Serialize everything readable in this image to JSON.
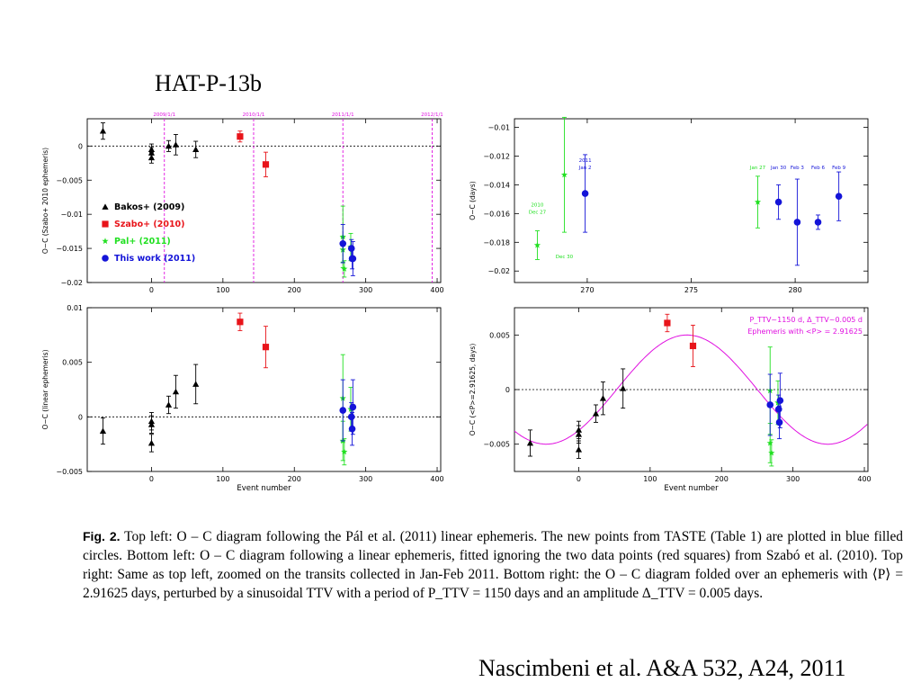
{
  "slide": {
    "title": "HAT-P-13b",
    "credit": "Nascimbeni et al. A&A 532, A24, 2011",
    "caption": {
      "label": "Fig. 2.",
      "text": " Top left: O – C diagram following the Pál et al. (2011) linear ephemeris. The new points from TASTE (Table 1) are plotted in blue filled circles. Bottom left: O – C diagram following a linear ephemeris, fitted ignoring the two data points (red squares) from Szabó et al. (2010). Top right: Same as top left, zoomed on the transits collected in Jan-Feb 2011. Bottom right: the O – C diagram folded over an ephemeris with ⟨P⟩ = 2.91625 days, perturbed by a sinusoidal TTV with a period of P_TTV = 1150 days and an amplitude Δ_TTV = 0.005 days."
    }
  },
  "colors": {
    "bakos": "#000000",
    "szabo": "#e8141a",
    "pal": "#22e022",
    "thiswork": "#1414d8",
    "date_lines": "#e010e0",
    "fit": "#e010e0"
  },
  "chart_data": [
    {
      "id": "top-left",
      "type": "scatter",
      "xlim": [
        -90,
        405
      ],
      "ylim": [
        -0.02,
        0.004
      ],
      "xticks": [
        0,
        100,
        200,
        300,
        400
      ],
      "yticks": [
        0,
        -0.005,
        -0.01,
        -0.015,
        -0.02
      ],
      "ytick_labels": [
        "0",
        "−0.005",
        "−0.01",
        "−0.015",
        "−0.02"
      ],
      "xlabel": "",
      "ylabel": "O−C (Szabo+ 2010 ephemeris)",
      "zero_line": true,
      "date_markers": [
        {
          "x": 18,
          "label": "2009/1/1"
        },
        {
          "x": 143,
          "label": "2010/1/1"
        },
        {
          "x": 268,
          "label": "2011/1/1"
        },
        {
          "x": 393,
          "label": "2012/1/1"
        }
      ],
      "legend": [
        {
          "label": "Bakos+ (2009)",
          "marker": "triangle",
          "color": "#000000"
        },
        {
          "label": "Szabo+ (2010)",
          "marker": "square",
          "color": "#e8141a"
        },
        {
          "label": "Pal+ (2011)",
          "marker": "star",
          "color": "#22e022"
        },
        {
          "label": "This work (2011)",
          "marker": "circle",
          "color": "#1414d8"
        }
      ],
      "series": [
        {
          "name": "Bakos+ (2009)",
          "marker": "triangle",
          "color": "#000000",
          "points": [
            [
              -68,
              0.0022,
              0.0012
            ],
            [
              0,
              -0.0005,
              0.0008
            ],
            [
              0,
              -0.001,
              0.0008
            ],
            [
              0,
              -0.0017,
              0.0008
            ],
            [
              24,
              0.0,
              0.0008
            ],
            [
              34,
              0.0002,
              0.0015
            ],
            [
              62,
              -0.0005,
              0.0012
            ]
          ]
        },
        {
          "name": "Szabo+ (2010)",
          "marker": "square",
          "color": "#e8141a",
          "points": [
            [
              124,
              0.0014,
              0.0008
            ],
            [
              160,
              -0.0027,
              0.0018
            ]
          ]
        },
        {
          "name": "Pal+ (2011)",
          "marker": "star",
          "color": "#22e022",
          "points": [
            [
              268,
              -0.0133,
              0.0045
            ],
            [
              268,
              -0.0152,
              0.0018
            ],
            [
              270,
              -0.018,
              0.0012
            ],
            [
              279,
              -0.0148,
              0.002
            ]
          ]
        },
        {
          "name": "This work (2011)",
          "marker": "circle",
          "color": "#1414d8",
          "points": [
            [
              268,
              -0.0143,
              0.0028
            ],
            [
              280,
              -0.015,
              0.0013
            ],
            [
              281,
              -0.0165,
              0.0015
            ],
            [
              282,
              -0.0165,
              0.0025
            ]
          ]
        }
      ]
    },
    {
      "id": "top-right",
      "type": "scatter",
      "xlim": [
        266.5,
        283.5
      ],
      "ylim": [
        -0.0208,
        -0.0094
      ],
      "xticks": [
        270,
        275,
        280
      ],
      "yticks": [
        -0.01,
        -0.012,
        -0.014,
        -0.016,
        -0.018,
        -0.02
      ],
      "ytick_labels": [
        "−0.01",
        "−0.012",
        "−0.014",
        "−0.016",
        "−0.018",
        "−0.02"
      ],
      "xlabel": "",
      "ylabel": "O−C (days)",
      "series": [
        {
          "name": "Pal+ (2011)",
          "marker": "star",
          "color": "#22e022",
          "points": [
            [
              267.6,
              -0.0182,
              0.001
            ],
            [
              268.9,
              -0.0133,
              0.004
            ],
            [
              278.2,
              -0.0152,
              0.0018
            ]
          ]
        },
        {
          "name": "This work (2011)",
          "marker": "circle",
          "color": "#1414d8",
          "points": [
            [
              269.9,
              -0.0146,
              0.0027
            ],
            [
              279.2,
              -0.0152,
              0.0012
            ],
            [
              280.1,
              -0.0166,
              0.003
            ],
            [
              281.1,
              -0.0166,
              0.0005
            ],
            [
              282.1,
              -0.0148,
              0.0017
            ]
          ]
        }
      ],
      "annotations": [
        {
          "text": "2010",
          "x": 267.6,
          "y": -0.0155,
          "color": "#22e022"
        },
        {
          "text": "Dec 27",
          "x": 267.6,
          "y": -0.016,
          "color": "#22e022"
        },
        {
          "text": "Dec 30",
          "x": 268.9,
          "y": -0.0191,
          "color": "#22e022"
        },
        {
          "text": "2011",
          "x": 269.9,
          "y": -0.0124,
          "color": "#1414d8"
        },
        {
          "text": "Jan 2",
          "x": 269.9,
          "y": -0.0129,
          "color": "#1414d8"
        },
        {
          "text": "Jan 27",
          "x": 278.2,
          "y": -0.0129,
          "color": "#22e022"
        },
        {
          "text": "Jan 30",
          "x": 279.2,
          "y": -0.0129,
          "color": "#1414d8"
        },
        {
          "text": "Feb 3",
          "x": 280.1,
          "y": -0.0129,
          "color": "#1414d8"
        },
        {
          "text": "Feb 6",
          "x": 281.1,
          "y": -0.0129,
          "color": "#1414d8"
        },
        {
          "text": "Feb 9",
          "x": 282.1,
          "y": -0.0129,
          "color": "#1414d8"
        }
      ]
    },
    {
      "id": "bottom-left",
      "type": "scatter",
      "xlim": [
        -90,
        405
      ],
      "ylim": [
        -0.005,
        0.01
      ],
      "xticks": [
        0,
        100,
        200,
        300,
        400
      ],
      "yticks": [
        0.01,
        0.005,
        0,
        -0.005
      ],
      "ytick_labels": [
        "0.01",
        "0.005",
        "0",
        "−0.005"
      ],
      "xlabel": "Event number",
      "ylabel": "O−C (linear ephemeris)",
      "zero_line": true,
      "series": [
        {
          "name": "Bakos+ (2009)",
          "marker": "triangle",
          "color": "#000000",
          "points": [
            [
              -68,
              -0.0013,
              0.0012
            ],
            [
              0,
              -0.0004,
              0.0008
            ],
            [
              0,
              -0.0007,
              0.0008
            ],
            [
              0,
              -0.0024,
              0.0008
            ],
            [
              24,
              0.0011,
              0.0008
            ],
            [
              34,
              0.0023,
              0.0015
            ],
            [
              62,
              0.003,
              0.0018
            ]
          ]
        },
        {
          "name": "Szabo+ (2010)",
          "marker": "square",
          "color": "#e8141a",
          "points": [
            [
              124,
              0.0087,
              0.0008
            ],
            [
              160,
              0.0064,
              0.0019
            ]
          ]
        },
        {
          "name": "Pal+ (2011)",
          "marker": "star",
          "color": "#22e022",
          "points": [
            [
              268,
              0.0017,
              0.004
            ],
            [
              268,
              -0.0022,
              0.0018
            ],
            [
              270,
              -0.0032,
              0.0012
            ],
            [
              279,
              0.0007,
              0.002
            ]
          ]
        },
        {
          "name": "This work (2011)",
          "marker": "circle",
          "color": "#1414d8",
          "points": [
            [
              268,
              0.0006,
              0.0028
            ],
            [
              280,
              0.0,
              0.0013
            ],
            [
              281,
              -0.0011,
              0.0015
            ],
            [
              282,
              0.0009,
              0.0025
            ]
          ]
        }
      ]
    },
    {
      "id": "bottom-right",
      "type": "scatter",
      "xlim": [
        -90,
        405
      ],
      "ylim": [
        -0.0075,
        0.0075
      ],
      "xticks": [
        0,
        100,
        200,
        300,
        400
      ],
      "yticks": [
        0.005,
        0,
        -0.005
      ],
      "ytick_labels": [
        "0.005",
        "0",
        "−0.005"
      ],
      "xlabel": "Event number",
      "ylabel": "O−C (<P>=2.91625, days)",
      "zero_line": true,
      "fit": {
        "name": "Ephemeris with <P> = 2.91625",
        "amplitude": 0.005,
        "period_events": 394.3,
        "phase_event": 53,
        "x_range": [
          -90,
          405
        ]
      },
      "legend_text": [
        "P_TTV~1150 d, Δ_TTV~0.005 d",
        "Ephemeris with <P> = 2.91625"
      ],
      "series": [
        {
          "name": "Bakos+ (2009)",
          "marker": "triangle",
          "color": "#000000",
          "points": [
            [
              -68,
              -0.0049,
              0.0012
            ],
            [
              0,
              -0.0037,
              0.0008
            ],
            [
              0,
              -0.0041,
              0.0008
            ],
            [
              0,
              -0.0055,
              0.0008
            ],
            [
              24,
              -0.0022,
              0.0008
            ],
            [
              34,
              -0.0008,
              0.0015
            ],
            [
              62,
              0.0001,
              0.0018
            ]
          ]
        },
        {
          "name": "Szabo+ (2010)",
          "marker": "square",
          "color": "#e8141a",
          "points": [
            [
              124,
              0.0061,
              0.0008
            ],
            [
              160,
              0.004,
              0.0019
            ]
          ]
        },
        {
          "name": "Pal+ (2011)",
          "marker": "star",
          "color": "#22e022",
          "points": [
            [
              268,
              -0.0001,
              0.004
            ],
            [
              268,
              -0.0049,
              0.0018
            ],
            [
              270,
              -0.0058,
              0.0012
            ],
            [
              279,
              -0.0012,
              0.002
            ]
          ]
        },
        {
          "name": "This work (2011)",
          "marker": "circle",
          "color": "#1414d8",
          "points": [
            [
              268,
              -0.0014,
              0.0028
            ],
            [
              280,
              -0.0018,
              0.0013
            ],
            [
              281,
              -0.003,
              0.0015
            ],
            [
              282,
              -0.001,
              0.0025
            ]
          ]
        }
      ]
    }
  ]
}
